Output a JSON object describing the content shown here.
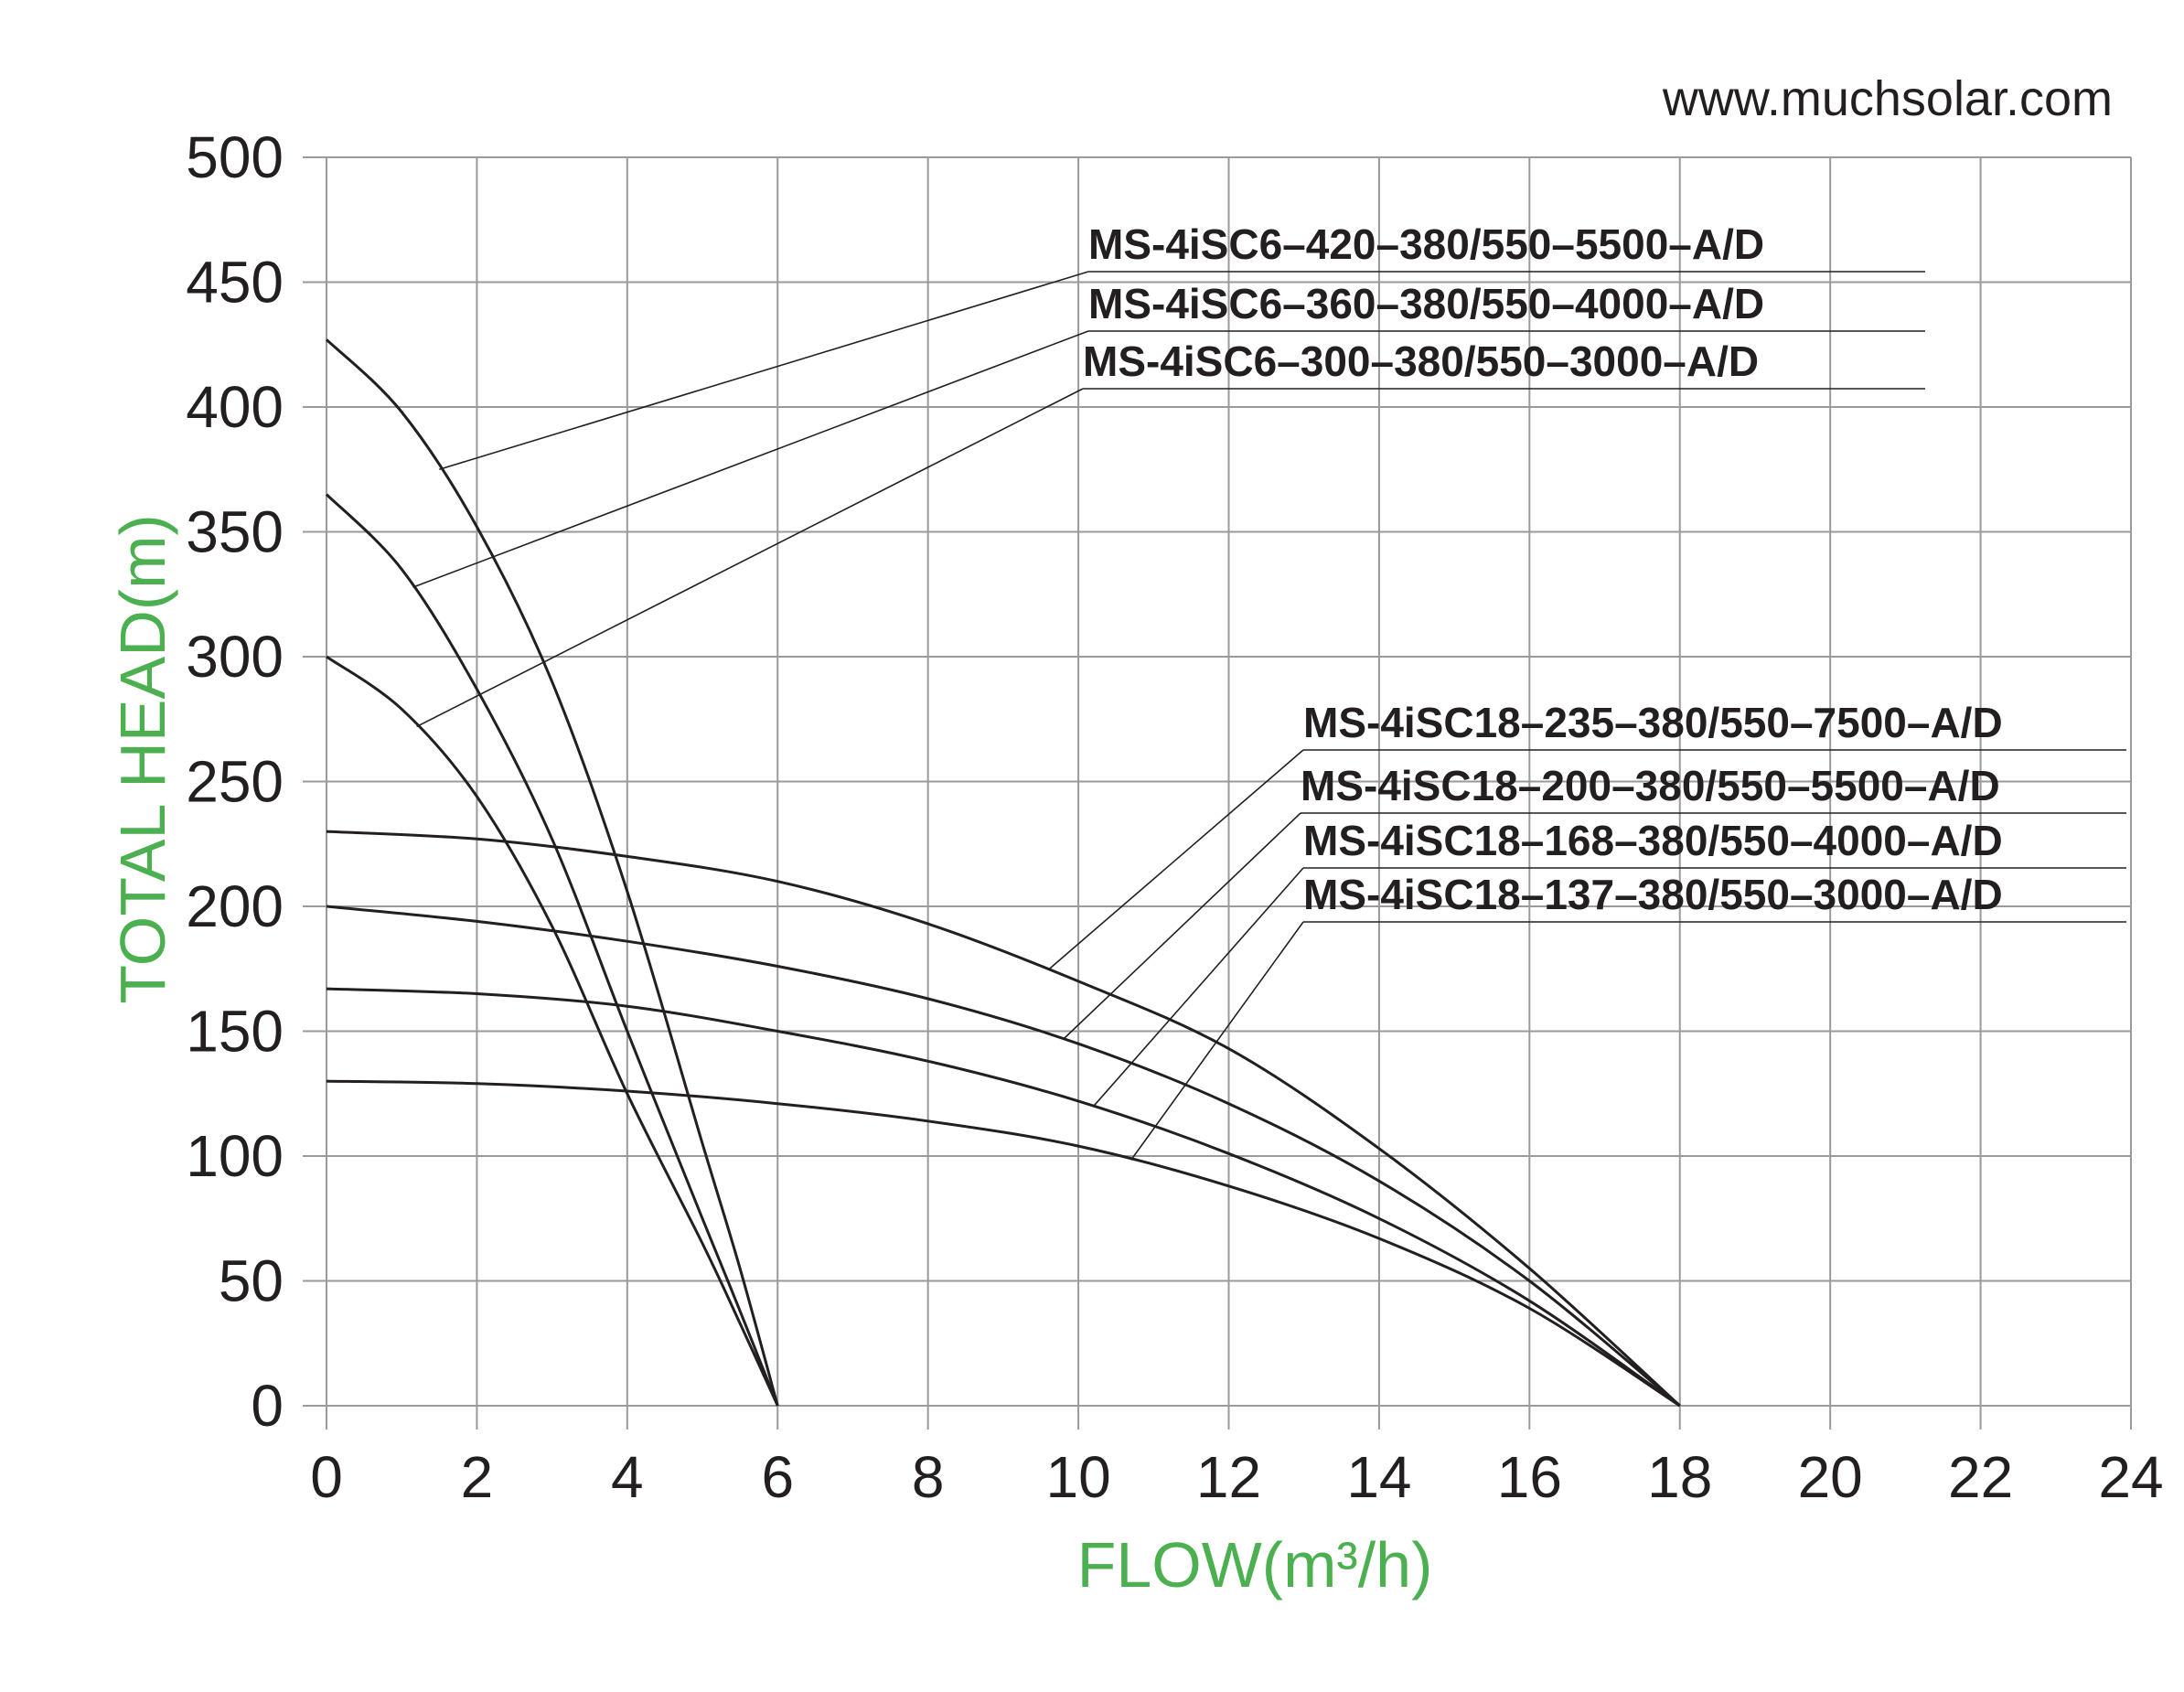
{
  "website": "www.muchsolar.com",
  "colors": {
    "axis_title": "#4caf50",
    "lines": "#231f20",
    "grid": "#9a9a9a"
  },
  "chart_data": {
    "type": "line",
    "title": "",
    "xlabel": "FLOW(m³/h)",
    "ylabel": "TOTAL HEAD(m)",
    "xlim": [
      0,
      24
    ],
    "ylim": [
      0,
      500
    ],
    "x_ticks": [
      "0",
      "2",
      "4",
      "6",
      "8",
      "10",
      "12",
      "14",
      "16",
      "18",
      "20",
      "22",
      "24"
    ],
    "y_ticks": [
      "0",
      "50",
      "100",
      "150",
      "200",
      "250",
      "300",
      "350",
      "400",
      "450",
      "500"
    ],
    "grid": true,
    "series": [
      {
        "name": "MS-4iSC6–420–380/550–5500–A/D",
        "x": [
          0,
          1,
          2,
          3,
          4,
          5,
          5.5,
          6
        ],
        "y": [
          427,
          398,
          352,
          290,
          206,
          105,
          55,
          0
        ]
      },
      {
        "name": "MS-4iSC6–360–380/550–4000–A/D",
        "x": [
          0,
          1,
          2,
          3,
          4,
          5,
          5.5,
          6
        ],
        "y": [
          365,
          335,
          287,
          227,
          150,
          75,
          38,
          0
        ]
      },
      {
        "name": "MS-4iSC6–300–380/550–3000–A/D",
        "x": [
          0,
          1,
          2,
          3,
          4,
          5,
          5.5,
          6
        ],
        "y": [
          300,
          279,
          244,
          192,
          125,
          65,
          33,
          0
        ]
      },
      {
        "name": "MS-4iSC18–235–380/550–7500–A/D",
        "x": [
          0,
          2,
          4,
          6,
          8,
          10,
          12,
          14,
          16,
          18
        ],
        "y": [
          230,
          227,
          220,
          210,
          193,
          170,
          143,
          103,
          55,
          0
        ]
      },
      {
        "name": "MS-4iSC18–200–380/550–5500–A/D",
        "x": [
          0,
          2,
          4,
          6,
          8,
          10,
          12,
          14,
          16,
          18
        ],
        "y": [
          200,
          194,
          186,
          176,
          163,
          145,
          121,
          90,
          50,
          0
        ]
      },
      {
        "name": "MS-4iSC18–168–380/550–4000–A/D",
        "x": [
          0,
          2,
          4,
          6,
          8,
          10,
          12,
          14,
          16,
          18
        ],
        "y": [
          167,
          165,
          160,
          150,
          138,
          122,
          101,
          75,
          42,
          0
        ]
      },
      {
        "name": "MS-4iSC18–137–380/550–3000–A/D",
        "x": [
          0,
          2,
          4,
          6,
          8,
          10,
          12,
          14,
          16,
          18
        ],
        "y": [
          130,
          129,
          126,
          121,
          114,
          104,
          88,
          67,
          39,
          0
        ]
      }
    ]
  }
}
